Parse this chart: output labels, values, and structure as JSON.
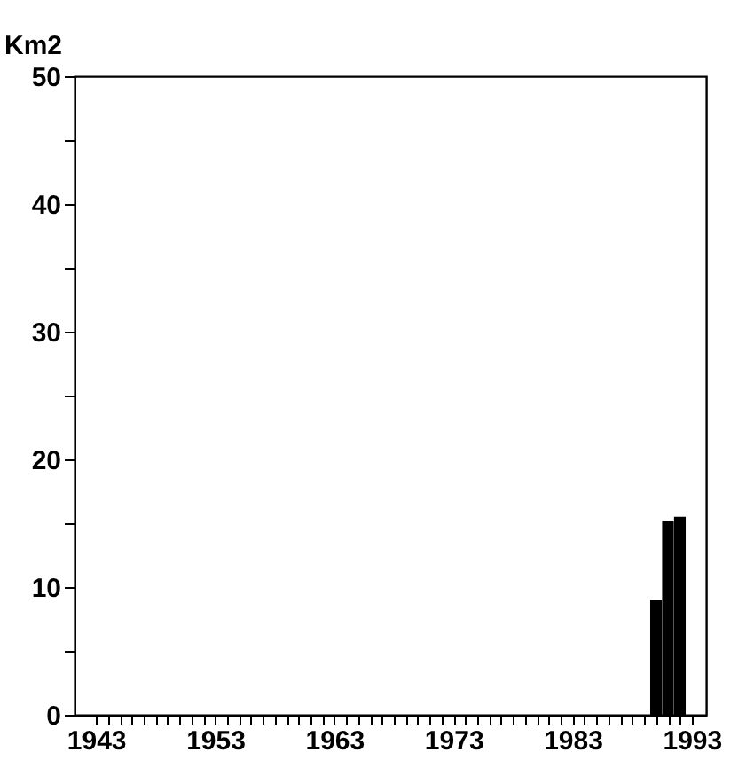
{
  "chart_data": {
    "type": "bar",
    "ylabel": "Km2",
    "x": [
      1990,
      1991,
      1992
    ],
    "series": [
      {
        "color": "#000000",
        "values": [
          9,
          15.2,
          15.5
        ]
      }
    ],
    "xlim": [
      1941.2,
      1994.2
    ],
    "xticks": [
      1943,
      {
        "value": 1944,
        "label": null
      },
      {
        "value": 1945,
        "label": null
      },
      {
        "value": 1946,
        "label": null
      },
      {
        "value": 1947,
        "label": null
      },
      {
        "value": 1948,
        "label": null
      },
      {
        "value": 1949,
        "label": null
      },
      {
        "value": 1950,
        "label": null
      },
      {
        "value": 1951,
        "label": null
      },
      {
        "value": 1952,
        "label": null
      },
      1953,
      {
        "value": 1954,
        "label": null
      },
      {
        "value": 1955,
        "label": null
      },
      {
        "value": 1956,
        "label": null
      },
      {
        "value": 1957,
        "label": null
      },
      {
        "value": 1958,
        "label": null
      },
      {
        "value": 1959,
        "label": null
      },
      {
        "value": 1960,
        "label": null
      },
      {
        "value": 1961,
        "label": null
      },
      {
        "value": 1962,
        "label": null
      },
      1963,
      {
        "value": 1964,
        "label": null
      },
      {
        "value": 1965,
        "label": null
      },
      {
        "value": 1966,
        "label": null
      },
      {
        "value": 1967,
        "label": null
      },
      {
        "value": 1968,
        "label": null
      },
      {
        "value": 1969,
        "label": null
      },
      {
        "value": 1970,
        "label": null
      },
      {
        "value": 1971,
        "label": null
      },
      {
        "value": 1972,
        "label": null
      },
      1973,
      {
        "value": 1974,
        "label": null
      },
      {
        "value": 1975,
        "label": null
      },
      {
        "value": 1976,
        "label": null
      },
      {
        "value": 1977,
        "label": null
      },
      {
        "value": 1978,
        "label": null
      },
      {
        "value": 1979,
        "label": null
      },
      {
        "value": 1980,
        "label": null
      },
      {
        "value": 1981,
        "label": null
      },
      {
        "value": 1982,
        "label": null
      },
      1983,
      {
        "value": 1984,
        "label": null
      },
      {
        "value": 1985,
        "label": null
      },
      {
        "value": 1986,
        "label": null
      },
      {
        "value": 1987,
        "label": null
      },
      {
        "value": 1988,
        "label": null
      },
      {
        "value": 1989,
        "label": null
      },
      {
        "value": 1990,
        "label": null
      },
      {
        "value": 1991,
        "label": null
      },
      {
        "value": 1992,
        "label": null
      },
      1993
    ],
    "ylim": [
      0,
      50
    ],
    "yticks": [
      0,
      {
        "value": 5,
        "label": null
      },
      10,
      {
        "value": 15,
        "label": null
      },
      20,
      {
        "value": 25,
        "label": null
      },
      30,
      {
        "value": 35,
        "label": null
      },
      40,
      {
        "value": 45,
        "label": null
      },
      50
    ],
    "grid": false
  }
}
